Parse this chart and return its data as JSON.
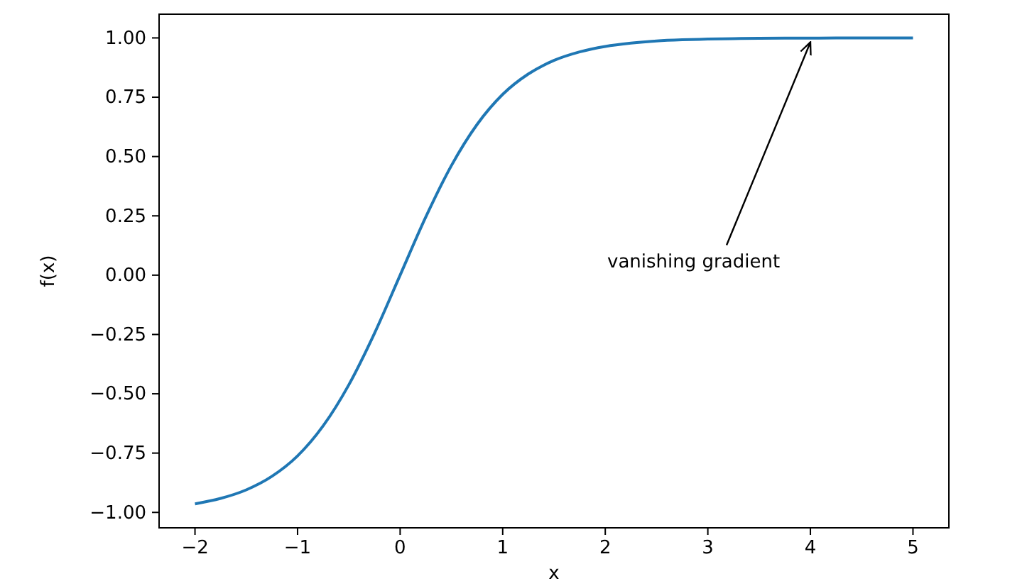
{
  "chart_data": {
    "type": "line",
    "xlabel": "x",
    "ylabel": "f(x)",
    "x": [
      -2,
      -1.75,
      -1.5,
      -1.25,
      -1,
      -0.75,
      -0.5,
      -0.25,
      0,
      0.25,
      0.5,
      0.75,
      1,
      1.25,
      1.5,
      1.75,
      2,
      2.25,
      2.5,
      2.75,
      3,
      3.25,
      3.5,
      3.75,
      4,
      4.25,
      4.5,
      4.75,
      5
    ],
    "series": [
      {
        "color": "#1f77b4",
        "values": [
          -0.964,
          -0.941,
          -0.905,
          -0.848,
          -0.762,
          -0.635,
          -0.462,
          -0.245,
          0,
          0.245,
          0.462,
          0.635,
          0.762,
          0.848,
          0.905,
          0.941,
          0.964,
          0.978,
          0.987,
          0.992,
          0.995,
          0.997,
          0.998,
          0.999,
          0.999,
          1.0,
          1.0,
          1.0,
          1.0
        ]
      }
    ],
    "xlim": [
      -2.35,
      5.35
    ],
    "ylim": [
      -1.065,
      1.1
    ],
    "xticks": [
      {
        "value": -2,
        "label": "−2"
      },
      {
        "value": -1,
        "label": "−1"
      },
      0,
      1,
      2,
      3,
      4,
      5
    ],
    "yticks": [
      {
        "value": -1,
        "label": "−1.00"
      },
      {
        "value": -0.75,
        "label": "−0.75"
      },
      {
        "value": -0.5,
        "label": "−0.50"
      },
      {
        "value": -0.25,
        "label": "−0.25"
      },
      {
        "value": 0,
        "label": "0.00"
      },
      {
        "value": 0.25,
        "label": "0.25"
      },
      {
        "value": 0.5,
        "label": "0.50"
      },
      {
        "value": 0.75,
        "label": "0.75"
      },
      {
        "value": 1,
        "label": "1.00"
      }
    ],
    "annotations": [
      {
        "text": "vanishing gradient",
        "x": 4,
        "y": 1
      }
    ],
    "grid": false,
    "marker": "none",
    "line_style": "solid"
  }
}
